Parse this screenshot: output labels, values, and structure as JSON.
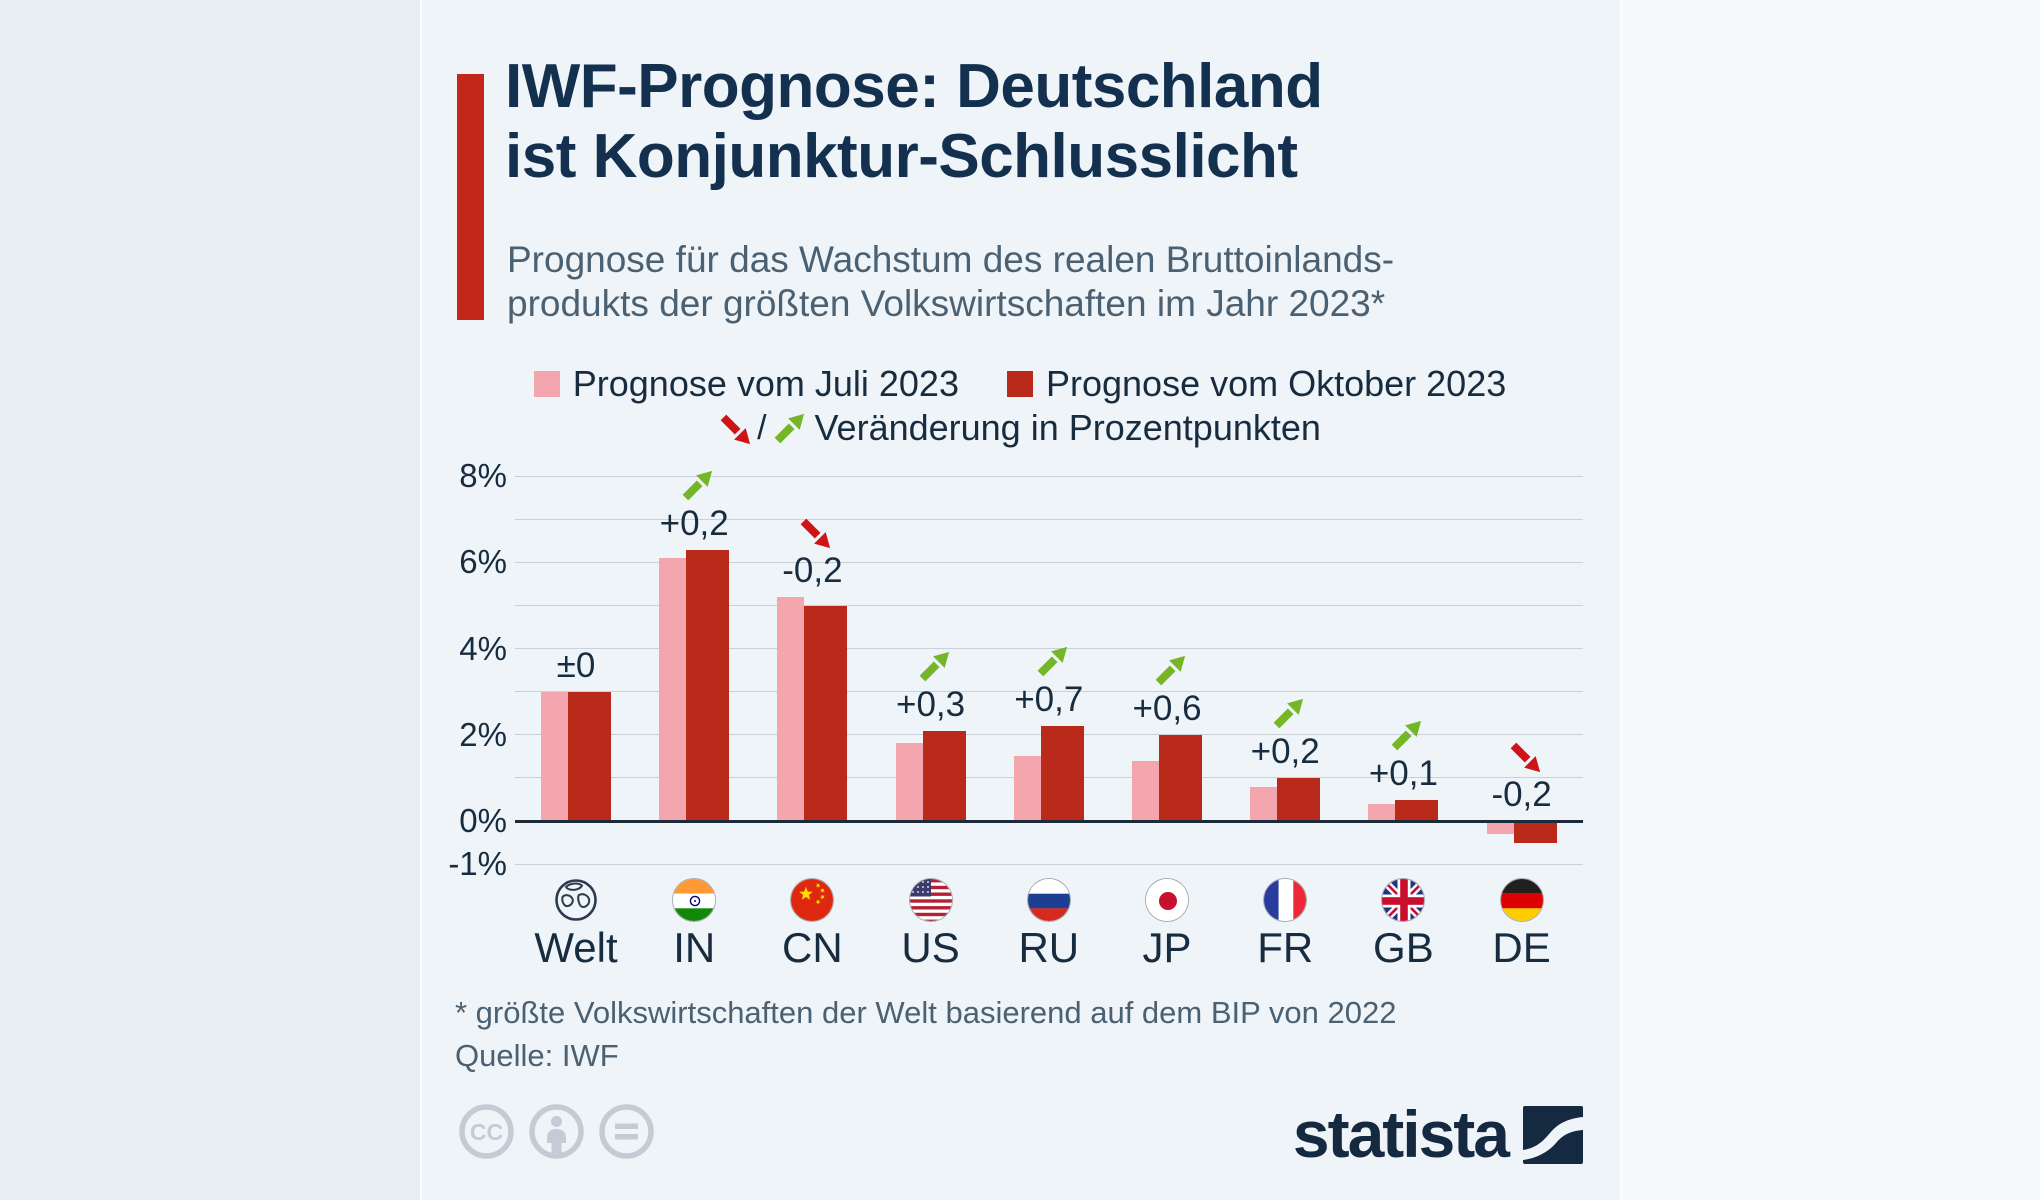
{
  "header": {
    "title_line1": "IWF-Prognose: Deutschland",
    "title_line2": "ist Konjunktur-Schlusslicht",
    "subtitle_line1": "Prognose für das Wachstum des realen Bruttoinlands-",
    "subtitle_line2": "produkts der größten Volkswirtschaften im Jahr 2023*"
  },
  "legend": {
    "series1": "Prognose vom Juli 2023",
    "series2": "Prognose vom Oktober 2023",
    "separator": "/",
    "change_label": "Veränderung in Prozentpunkten"
  },
  "chart_data": {
    "type": "bar",
    "title": "IWF-Prognose: Deutschland ist Konjunktur-Schlusslicht",
    "categories": [
      "Welt",
      "IN",
      "CN",
      "US",
      "RU",
      "JP",
      "FR",
      "GB",
      "DE"
    ],
    "flags": [
      "globe",
      "in",
      "cn",
      "us",
      "ru",
      "jp",
      "fr",
      "gb",
      "de"
    ],
    "series": [
      {
        "name": "Prognose vom Juli 2023",
        "color": "#f4a6ae",
        "values": [
          3.0,
          6.1,
          5.2,
          1.8,
          1.5,
          1.4,
          0.8,
          0.4,
          -0.3
        ]
      },
      {
        "name": "Prognose vom Oktober 2023",
        "color": "#b92a1b",
        "values": [
          3.0,
          6.3,
          5.0,
          2.1,
          2.2,
          2.0,
          1.0,
          0.5,
          -0.5
        ]
      }
    ],
    "changes": [
      {
        "label": "±0",
        "direction": "none"
      },
      {
        "label": "+0,2",
        "direction": "up"
      },
      {
        "label": "-0,2",
        "direction": "down"
      },
      {
        "label": "+0,3",
        "direction": "up"
      },
      {
        "label": "+0,7",
        "direction": "up"
      },
      {
        "label": "+0,6",
        "direction": "up"
      },
      {
        "label": "+0,2",
        "direction": "up"
      },
      {
        "label": "+0,1",
        "direction": "up"
      },
      {
        "label": "-0,2",
        "direction": "down"
      }
    ],
    "yticks": [
      {
        "value": 8,
        "label": "8%"
      },
      {
        "value": 6,
        "label": "6%"
      },
      {
        "value": 4,
        "label": "4%"
      },
      {
        "value": 2,
        "label": "2%"
      },
      {
        "value": 0,
        "label": "0%"
      },
      {
        "value": -1,
        "label": "-1%"
      }
    ],
    "ylim": [
      -1,
      8
    ],
    "grid_step": 1,
    "grid": true,
    "legend_position": "top"
  },
  "footer": {
    "footnote": "* größte Volkswirtschaften der Welt basierend auf dem BIP von 2022",
    "source": "Quelle: IWF",
    "brand": "statista"
  },
  "colors": {
    "accent_red": "#c22717",
    "bar_july_pink": "#f4a6ae",
    "bar_oct_red": "#b92a1b",
    "arrow_up_green": "#74b626",
    "arrow_down_red": "#d01317",
    "title_navy": "#13304e",
    "subtitle_slate": "#4b6172",
    "axis_navy": "#182c3f",
    "gridline": "#c9d0d8",
    "zero_line": "#1c2b39",
    "card_bg": "#eff4f9",
    "cc_gray": "#c3ccd4",
    "brand_navy": "#152a41"
  }
}
